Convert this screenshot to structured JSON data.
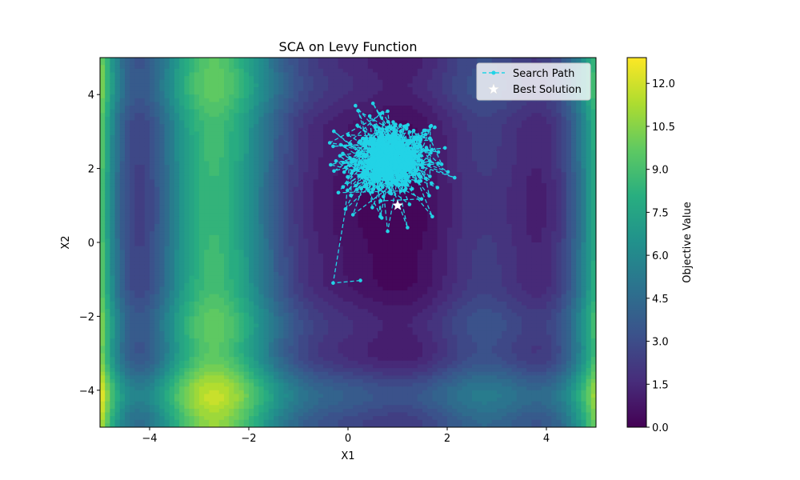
{
  "chart_data": {
    "type": "contour-scatter",
    "title": "SCA on Levy Function",
    "xlabel": "X1",
    "ylabel": "X2",
    "xlim": [
      -5,
      5
    ],
    "ylim": [
      -5,
      5
    ],
    "xticks": [
      -4,
      -2,
      0,
      2,
      4
    ],
    "yticks": [
      -4,
      -2,
      0,
      2,
      4
    ],
    "xtick_labels": [
      "−4",
      "−2",
      "0",
      "2",
      "4"
    ],
    "ytick_labels": [
      "−4",
      "−2",
      "0",
      "2",
      "4"
    ],
    "colormap": "viridis",
    "colorbar": {
      "label": "Objective Value",
      "range": [
        0,
        12.9
      ],
      "ticks": [
        0.0,
        1.5,
        3.0,
        4.5,
        6.0,
        7.5,
        9.0,
        10.5,
        12.0
      ],
      "tick_labels": [
        "0.0",
        "1.5",
        "3.0",
        "4.5",
        "6.0",
        "7.5",
        "9.0",
        "10.5",
        "12.0"
      ]
    },
    "legend": {
      "position": "top-right",
      "entries": [
        {
          "label": "Search Path",
          "style": "dashed line with dot markers",
          "color": "#22d3e6"
        },
        {
          "label": "Best Solution",
          "style": "star marker",
          "color": "#ffffff"
        }
      ]
    },
    "series": [
      {
        "name": "Search Path",
        "color": "#22d3e6",
        "approx_points": [
          [
            0.25,
            -1.03
          ],
          [
            -0.3,
            -1.1
          ],
          [
            -0.05,
            0.9
          ],
          [
            -0.1,
            1.5
          ],
          [
            -0.3,
            2.6
          ],
          [
            0.15,
            3.7
          ],
          [
            0.8,
            3.55
          ],
          [
            1.6,
            2.5
          ],
          [
            2.15,
            1.75
          ],
          [
            1.7,
            0.7
          ],
          [
            1.2,
            0.4
          ],
          [
            0.8,
            0.3
          ],
          [
            0.1,
            0.75
          ],
          [
            -0.35,
            2.1
          ]
        ],
        "cluster_center": [
          0.85,
          2.25
        ]
      },
      {
        "name": "Best Solution",
        "color": "#ffffff",
        "points": [
          [
            1.0,
            1.0
          ]
        ]
      }
    ]
  }
}
